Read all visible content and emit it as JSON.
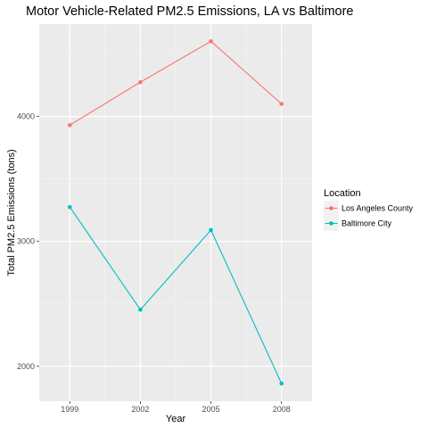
{
  "chart_data": {
    "type": "line",
    "title": "Motor Vehicle-Related PM2.5 Emissions, LA vs Baltimore",
    "xlabel": "Year",
    "ylabel": "Total PM2.5 Emissions (tons)",
    "x": [
      1999,
      2002,
      2005,
      2008
    ],
    "xticks": [
      "1999",
      "2002",
      "2005",
      "2008"
    ],
    "yticks": [
      "2000",
      "3000",
      "4000"
    ],
    "xlim": [
      1997.7,
      2009.3
    ],
    "ylim": [
      1720,
      4740
    ],
    "grid": true,
    "legend": {
      "title": "Location",
      "placement": "right"
    },
    "series": [
      {
        "name": "Los Angeles County",
        "color": "#F8766D",
        "values": [
          3931,
          4275,
          4602,
          4101
        ]
      },
      {
        "name": "Baltimore City",
        "color": "#00BFC4",
        "values": [
          3275,
          2453,
          3091,
          1862
        ]
      }
    ]
  }
}
